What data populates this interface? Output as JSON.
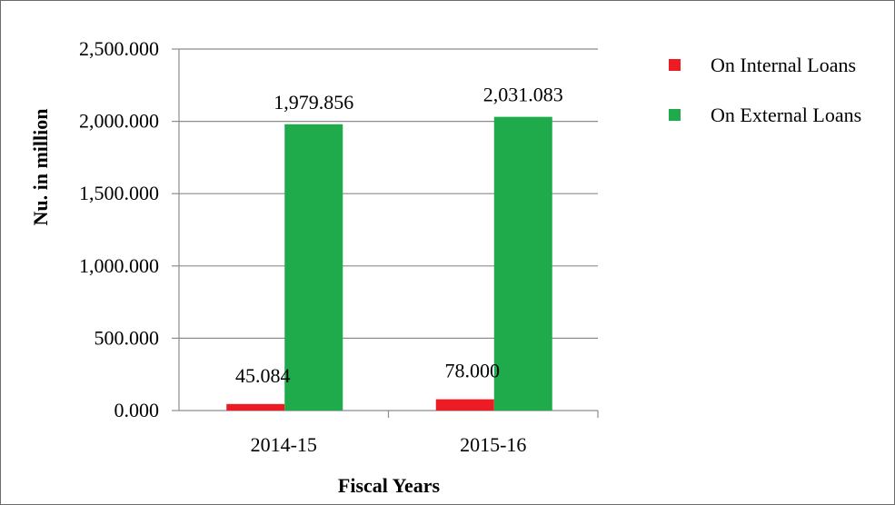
{
  "chart_data": {
    "type": "bar",
    "title": "",
    "xlabel": "Fiscal Years",
    "ylabel": "Nu. in million",
    "categories": [
      "2014-15",
      "2015-16"
    ],
    "ylim": [
      0,
      2500
    ],
    "yticks": [
      "0.000",
      "500.000",
      "1,000.000",
      "1,500.000",
      "2,000.000",
      "2,500.000"
    ],
    "grid": true,
    "legend_position": "right",
    "series": [
      {
        "name": "On Internal Loans",
        "color": "#ed1c24",
        "values": [
          45.084,
          78.0
        ],
        "labels": [
          "45.084",
          "78.000"
        ]
      },
      {
        "name": "On External Loans",
        "color": "#1faa4b",
        "values": [
          1979.856,
          2031.083
        ],
        "labels": [
          "1,979.856",
          "2,031.083"
        ]
      }
    ]
  }
}
